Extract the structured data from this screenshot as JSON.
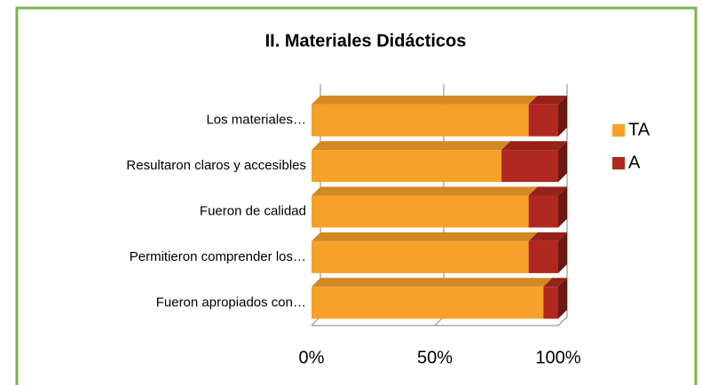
{
  "chart_data": {
    "type": "bar",
    "orientation": "horizontal",
    "stacked": true,
    "title": "II. Materiales Didácticos",
    "categories": [
      "Los materiales…",
      "Resultaron claros y accesibles",
      "Fueron de calidad",
      "Permitieron comprender los…",
      "Fueron apropiados con…"
    ],
    "series": [
      {
        "name": "TA",
        "color": "#f7a12a",
        "values": [
          88,
          77,
          88,
          88,
          94
        ]
      },
      {
        "name": "A",
        "color": "#b0281f",
        "values": [
          12,
          23,
          12,
          12,
          6
        ]
      }
    ],
    "xlim": [
      0,
      100
    ],
    "xticks": [
      {
        "value": 0,
        "label": "0%"
      },
      {
        "value": 50,
        "label": "50%"
      },
      {
        "value": 100,
        "label": "100%"
      }
    ],
    "grid": true,
    "legend": "right"
  }
}
